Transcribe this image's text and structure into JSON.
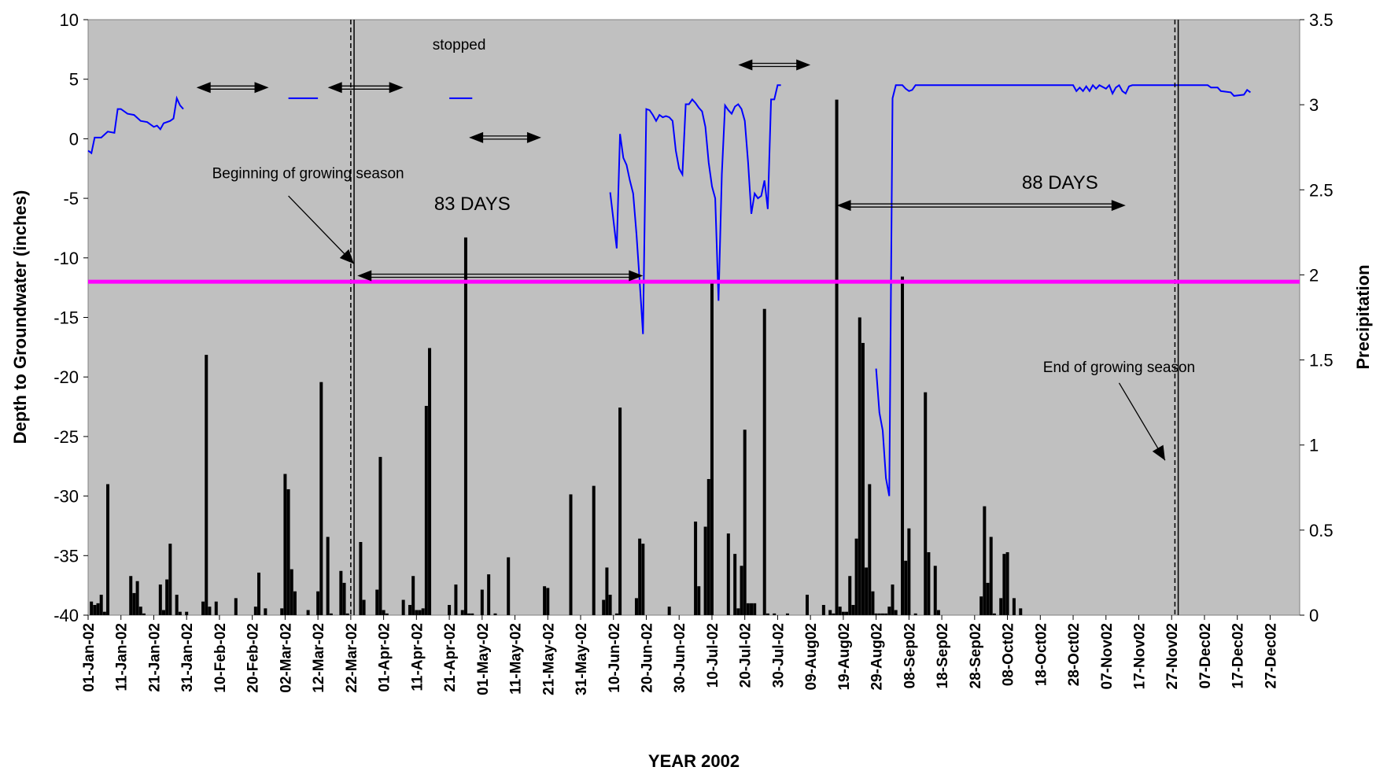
{
  "chart_data": {
    "type": "line",
    "xlabel": "YEAR 2002",
    "ylabel_left": "Depth to Groundwater (inches)",
    "ylabel_right": "Precipitation",
    "ylim_left": [
      -40,
      10
    ],
    "ylim_right": [
      0,
      3.5
    ],
    "yticks_left": [
      "10",
      "5",
      "0",
      "-5",
      "-10",
      "-15",
      "-20",
      "-25",
      "-30",
      "-35",
      "-40"
    ],
    "yticks_right": [
      "3.5",
      "3",
      "2.5",
      "2",
      "1.5",
      "1",
      "0.5",
      "0"
    ],
    "x_start_date": "2002-01-01",
    "x_range_days": [
      0,
      369
    ],
    "xtick_labels": [
      "01-Jan-02",
      "11-Jan-02",
      "21-Jan-02",
      "31-Jan-02",
      "10-Feb-02",
      "20-Feb-02",
      "02-Mar-02",
      "12-Mar-02",
      "22-Mar-02",
      "01-Apr-02",
      "11-Apr-02",
      "21-Apr-02",
      "01-May-02",
      "11-May-02",
      "21-May-02",
      "31-May-02",
      "10-Jun-02",
      "20-Jun-02",
      "30-Jun-02",
      "10-Jul-02",
      "20-Jul-02",
      "30-Jul-02",
      "09-Aug02",
      "19-Aug02",
      "29-Aug02",
      "08-Sep02",
      "18-Sep02",
      "28-Sep02",
      "08-Oct02",
      "18-Oct02",
      "28-Oct02",
      "07-Nov02",
      "17-Nov02",
      "27-Nov02",
      "07-Dec02",
      "17-Dec02",
      "27-Dec02"
    ],
    "grid": false,
    "background": "#c0c0c0",
    "threshold_line": {
      "value": -12,
      "color": "#ff00ff"
    },
    "groundwater_color": "#0000ff",
    "groundwater_segments": [
      [
        [
          0,
          -1
        ],
        [
          1,
          -1.2
        ],
        [
          2,
          0.1
        ],
        [
          4,
          0.1
        ],
        [
          6,
          0.6
        ],
        [
          8,
          0.5
        ],
        [
          9,
          2.5
        ],
        [
          10,
          2.5
        ],
        [
          12,
          2.1
        ],
        [
          14,
          2
        ],
        [
          16,
          1.5
        ],
        [
          18,
          1.4
        ],
        [
          20,
          1
        ],
        [
          21,
          1.1
        ],
        [
          22,
          0.8
        ],
        [
          23,
          1.3
        ],
        [
          25,
          1.5
        ],
        [
          26,
          1.7
        ],
        [
          27,
          3.4
        ],
        [
          28,
          2.8
        ],
        [
          29,
          2.5
        ]
      ],
      [
        [
          61,
          3.4
        ],
        [
          70,
          3.4
        ]
      ],
      [
        [
          110,
          3.4
        ],
        [
          117,
          3.4
        ]
      ],
      [
        [
          159,
          -4.5
        ],
        [
          161,
          -9.2
        ],
        [
          162,
          0.4
        ],
        [
          163,
          -1.6
        ],
        [
          164,
          -2.2
        ],
        [
          165,
          -3.5
        ],
        [
          166,
          -4.6
        ],
        [
          167,
          -8
        ],
        [
          168,
          -12
        ],
        [
          169,
          -16.4
        ],
        [
          170,
          2.5
        ],
        [
          171,
          2.4
        ],
        [
          172,
          2
        ],
        [
          173,
          1.5
        ],
        [
          174,
          2
        ],
        [
          175,
          1.8
        ],
        [
          176,
          1.9
        ],
        [
          177,
          1.8
        ],
        [
          178,
          1.5
        ],
        [
          179,
          -1
        ],
        [
          180,
          -2.5
        ],
        [
          181,
          -3
        ],
        [
          182,
          2.9
        ],
        [
          183,
          2.9
        ],
        [
          184,
          3.3
        ],
        [
          185,
          3
        ],
        [
          186,
          2.6
        ],
        [
          187,
          2.3
        ],
        [
          188,
          1
        ],
        [
          189,
          -2
        ],
        [
          190,
          -4
        ],
        [
          191,
          -5
        ],
        [
          192,
          -13.6
        ],
        [
          193,
          -3
        ],
        [
          194,
          2.8
        ],
        [
          195,
          2.4
        ],
        [
          196,
          2.1
        ],
        [
          197,
          2.7
        ],
        [
          198,
          2.9
        ],
        [
          199,
          2.5
        ],
        [
          200,
          1.5
        ],
        [
          201,
          -2
        ],
        [
          202,
          -6.3
        ],
        [
          203,
          -4.6
        ],
        [
          204,
          -5
        ],
        [
          205,
          -4.8
        ],
        [
          206,
          -3.5
        ],
        [
          207,
          -5.9
        ],
        [
          208,
          3.3
        ],
        [
          209,
          3.3
        ],
        [
          210,
          4.5
        ],
        [
          211,
          4.5
        ]
      ],
      [
        [
          240,
          -19.3
        ],
        [
          241,
          -23
        ],
        [
          242,
          -24.5
        ],
        [
          243,
          -28.5
        ],
        [
          244,
          -30
        ],
        [
          245,
          3.4
        ],
        [
          246,
          4.5
        ],
        [
          248,
          4.5
        ],
        [
          249,
          4.2
        ],
        [
          250,
          4.0
        ],
        [
          251,
          4.1
        ],
        [
          252,
          4.5
        ],
        [
          300,
          4.5
        ],
        [
          301,
          4.0
        ],
        [
          302,
          4.3
        ],
        [
          303,
          4.0
        ],
        [
          304,
          4.4
        ],
        [
          305,
          4.0
        ],
        [
          306,
          4.5
        ],
        [
          307,
          4.2
        ],
        [
          308,
          4.5
        ],
        [
          310,
          4.2
        ],
        [
          311,
          4.5
        ],
        [
          312,
          3.8
        ],
        [
          313,
          4.3
        ],
        [
          314,
          4.5
        ],
        [
          315,
          4.0
        ],
        [
          316,
          3.8
        ],
        [
          317,
          4.4
        ],
        [
          318,
          4.5
        ],
        [
          341,
          4.5
        ],
        [
          342,
          4.3
        ],
        [
          344,
          4.3
        ],
        [
          345,
          4.0
        ],
        [
          348,
          3.9
        ],
        [
          349,
          3.6
        ],
        [
          352,
          3.7
        ],
        [
          353,
          4.1
        ],
        [
          354,
          3.9
        ]
      ]
    ],
    "precipitation": [
      [
        1,
        0.08
      ],
      [
        2,
        0.06
      ],
      [
        3,
        0.07
      ],
      [
        4,
        0.12
      ],
      [
        5,
        0.02
      ],
      [
        6,
        0.77
      ],
      [
        13,
        0.23
      ],
      [
        14,
        0.13
      ],
      [
        15,
        0.2
      ],
      [
        16,
        0.05
      ],
      [
        17,
        0.01
      ],
      [
        22,
        0.18
      ],
      [
        23,
        0.03
      ],
      [
        24,
        0.21
      ],
      [
        25,
        0.42
      ],
      [
        27,
        0.12
      ],
      [
        28,
        0.02
      ],
      [
        30,
        0.02
      ],
      [
        35,
        0.08
      ],
      [
        36,
        1.53
      ],
      [
        37,
        0.05
      ],
      [
        39,
        0.08
      ],
      [
        45,
        0.1
      ],
      [
        51,
        0.05
      ],
      [
        52,
        0.25
      ],
      [
        54,
        0.04
      ],
      [
        59,
        0.04
      ],
      [
        60,
        0.83
      ],
      [
        61,
        0.74
      ],
      [
        62,
        0.27
      ],
      [
        63,
        0.14
      ],
      [
        67,
        0.03
      ],
      [
        70,
        0.14
      ],
      [
        71,
        1.37
      ],
      [
        73,
        0.46
      ],
      [
        74,
        0.01
      ],
      [
        77,
        0.26
      ],
      [
        78,
        0.19
      ],
      [
        79,
        0.01
      ],
      [
        83,
        0.43
      ],
      [
        84,
        0.09
      ],
      [
        88,
        0.15
      ],
      [
        89,
        0.93
      ],
      [
        90,
        0.03
      ],
      [
        91,
        0.01
      ],
      [
        96,
        0.09
      ],
      [
        98,
        0.06
      ],
      [
        99,
        0.23
      ],
      [
        100,
        0.03
      ],
      [
        101,
        0.03
      ],
      [
        102,
        0.04
      ],
      [
        103,
        1.23
      ],
      [
        104,
        1.57
      ],
      [
        110,
        0.06
      ],
      [
        112,
        0.18
      ],
      [
        114,
        0.03
      ],
      [
        115,
        2.22
      ],
      [
        116,
        0.01
      ],
      [
        117,
        0.01
      ],
      [
        120,
        0.15
      ],
      [
        122,
        0.24
      ],
      [
        124,
        0.01
      ],
      [
        128,
        0.34
      ],
      [
        139,
        0.17
      ],
      [
        140,
        0.16
      ],
      [
        147,
        0.71
      ],
      [
        154,
        0.76
      ],
      [
        157,
        0.09
      ],
      [
        158,
        0.28
      ],
      [
        159,
        0.12
      ],
      [
        161,
        0.01
      ],
      [
        162,
        1.22
      ],
      [
        167,
        0.1
      ],
      [
        168,
        0.45
      ],
      [
        169,
        0.42
      ],
      [
        177,
        0.05
      ],
      [
        185,
        0.55
      ],
      [
        186,
        0.17
      ],
      [
        188,
        0.52
      ],
      [
        189,
        0.8
      ],
      [
        190,
        1.96
      ],
      [
        195,
        0.48
      ],
      [
        197,
        0.36
      ],
      [
        198,
        0.04
      ],
      [
        199,
        0.29
      ],
      [
        200,
        1.09
      ],
      [
        201,
        0.07
      ],
      [
        202,
        0.07
      ],
      [
        203,
        0.07
      ],
      [
        206,
        1.8
      ],
      [
        207,
        0.01
      ],
      [
        209,
        0.01
      ],
      [
        213,
        0.01
      ],
      [
        219,
        0.12
      ],
      [
        224,
        0.06
      ],
      [
        226,
        0.03
      ],
      [
        227,
        0.01
      ],
      [
        228,
        3.03
      ],
      [
        229,
        0.05
      ],
      [
        230,
        0.02
      ],
      [
        231,
        0.02
      ],
      [
        232,
        0.23
      ],
      [
        233,
        0.06
      ],
      [
        234,
        0.45
      ],
      [
        235,
        1.75
      ],
      [
        236,
        1.6
      ],
      [
        237,
        0.28
      ],
      [
        238,
        0.77
      ],
      [
        239,
        0.14
      ],
      [
        240,
        0.01
      ],
      [
        241,
        0.01
      ],
      [
        242,
        0.01
      ],
      [
        243,
        0.01
      ],
      [
        244,
        0.05
      ],
      [
        245,
        0.18
      ],
      [
        246,
        0.03
      ],
      [
        248,
        1.99
      ],
      [
        249,
        0.32
      ],
      [
        250,
        0.51
      ],
      [
        252,
        0.01
      ],
      [
        255,
        1.31
      ],
      [
        256,
        0.37
      ],
      [
        258,
        0.29
      ],
      [
        259,
        0.03
      ],
      [
        272,
        0.11
      ],
      [
        273,
        0.64
      ],
      [
        274,
        0.19
      ],
      [
        275,
        0.46
      ],
      [
        276,
        0.01
      ],
      [
        278,
        0.1
      ],
      [
        279,
        0.36
      ],
      [
        280,
        0.37
      ],
      [
        282,
        0.1
      ],
      [
        284,
        0.04
      ]
    ],
    "vertical_lines": [
      {
        "day": 80,
        "style": "dashed"
      },
      {
        "day": 81,
        "style": "solid"
      },
      {
        "day": 331,
        "style": "dashed"
      },
      {
        "day": 332,
        "style": "solid"
      }
    ],
    "annotations": [
      {
        "text": "stopped",
        "x": 113,
        "y": 7.5
      },
      {
        "text": "Beginning of growing season",
        "x": 67,
        "y": -3.3
      },
      {
        "text": "83 DAYS",
        "x": 117,
        "y": -6
      },
      {
        "text": "88 DAYS",
        "x": 296,
        "y": -4.2
      },
      {
        "text": "End of growing season",
        "x": 314,
        "y": -19.6
      }
    ],
    "double_arrows": [
      {
        "x1": 33,
        "x2": 55,
        "y": 4.3
      },
      {
        "x1": 73,
        "x2": 96,
        "y": 4.3
      },
      {
        "x1": 116,
        "x2": 138,
        "y": 0.1
      },
      {
        "x1": 198,
        "x2": 220,
        "y": 6.2
      },
      {
        "x1": 82,
        "x2": 169,
        "y": -11.5
      },
      {
        "x1": 228,
        "x2": 316,
        "y": -5.6
      }
    ],
    "pointer_arrows": [
      {
        "from": [
          61,
          -4.8
        ],
        "to": [
          81,
          -10.5
        ]
      },
      {
        "from": [
          314,
          -20.5
        ],
        "to": [
          328,
          -27
        ]
      }
    ]
  }
}
